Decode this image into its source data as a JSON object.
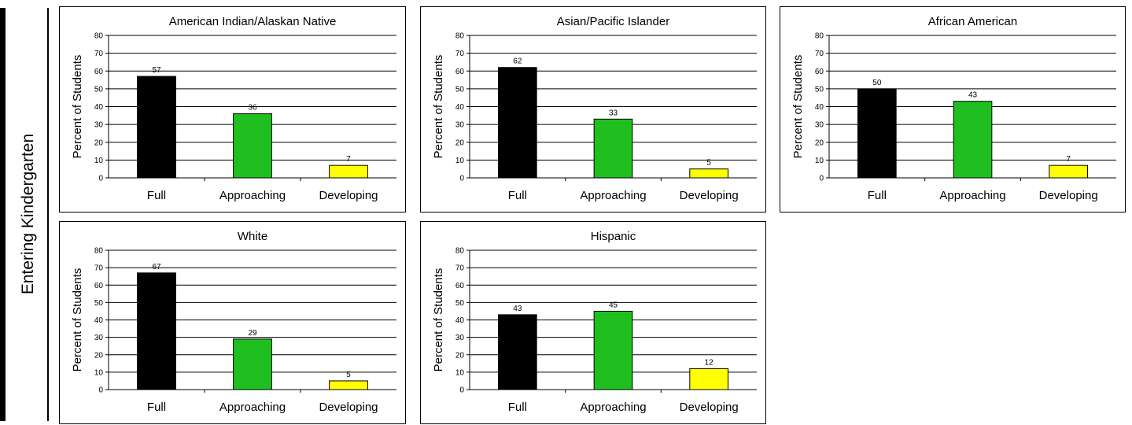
{
  "side_label": "Entering Kindergarten",
  "colors": {
    "Full": "#000000",
    "Approaching": "#1fbf1f",
    "Developing": "#ffff00"
  },
  "chart_data": [
    {
      "type": "bar",
      "title": "American Indian/Alaskan Native",
      "ylabel": "Percent of Students",
      "categories": [
        "Full",
        "Approaching",
        "Developing"
      ],
      "values": [
        57,
        36,
        7
      ],
      "ylim": [
        0,
        80
      ],
      "yticks": [
        0,
        10,
        20,
        30,
        40,
        50,
        60,
        70,
        80
      ],
      "grid": true
    },
    {
      "type": "bar",
      "title": "Asian/Pacific Islander",
      "ylabel": "Percent of Students",
      "categories": [
        "Full",
        "Approaching",
        "Developing"
      ],
      "values": [
        62,
        33,
        5
      ],
      "ylim": [
        0,
        80
      ],
      "yticks": [
        0,
        10,
        20,
        30,
        40,
        50,
        60,
        70,
        80
      ],
      "grid": true
    },
    {
      "type": "bar",
      "title": "African American",
      "ylabel": "Percent of Students",
      "categories": [
        "Full",
        "Approaching",
        "Developing"
      ],
      "values": [
        50,
        43,
        7
      ],
      "ylim": [
        0,
        80
      ],
      "yticks": [
        0,
        10,
        20,
        30,
        40,
        50,
        60,
        70,
        80
      ],
      "grid": true
    },
    {
      "type": "bar",
      "title": "White",
      "ylabel": "Percent of Students",
      "categories": [
        "Full",
        "Approaching",
        "Developing"
      ],
      "values": [
        67,
        29,
        5
      ],
      "ylim": [
        0,
        80
      ],
      "yticks": [
        0,
        10,
        20,
        30,
        40,
        50,
        60,
        70,
        80
      ],
      "grid": true
    },
    {
      "type": "bar",
      "title": "Hispanic",
      "ylabel": "Percent of Students",
      "categories": [
        "Full",
        "Approaching",
        "Developing"
      ],
      "values": [
        43,
        45,
        12
      ],
      "ylim": [
        0,
        80
      ],
      "yticks": [
        0,
        10,
        20,
        30,
        40,
        50,
        60,
        70,
        80
      ],
      "grid": true
    }
  ]
}
